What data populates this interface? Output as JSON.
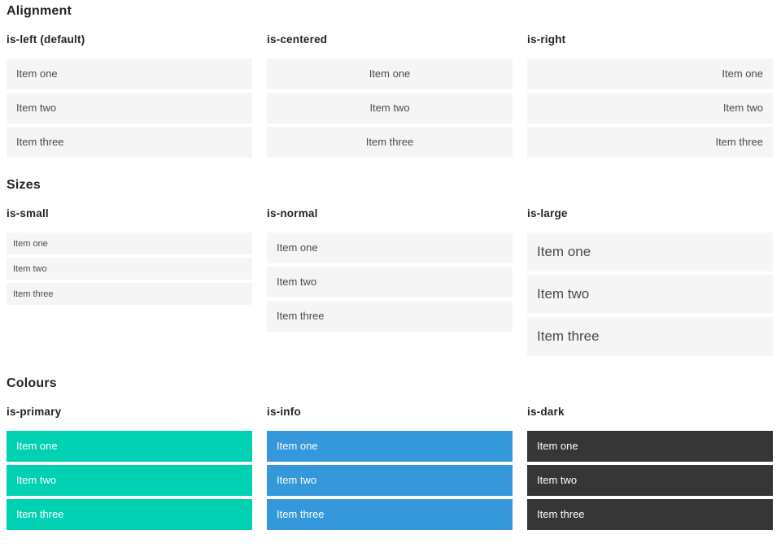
{
  "page": {
    "background": "#ffffff"
  },
  "colors": {
    "primary": "#00d1b2",
    "info": "#3498db",
    "dark": "#363636",
    "item_background": "#f5f5f5",
    "item_text": "#4a4a4a",
    "colored_item_text": "#ffffff",
    "heading_text": "#242424"
  },
  "sections": [
    {
      "title": "Alignment",
      "columns": [
        {
          "heading": "is-left (default)",
          "modifier": "left",
          "items": [
            "Item one",
            "Item two",
            "Item three"
          ]
        },
        {
          "heading": "is-centered",
          "modifier": "centered",
          "items": [
            "Item one",
            "Item two",
            "Item three"
          ]
        },
        {
          "heading": "is-right",
          "modifier": "right",
          "items": [
            "Item one",
            "Item two",
            "Item three"
          ]
        }
      ]
    },
    {
      "title": "Sizes",
      "columns": [
        {
          "heading": "is-small",
          "modifier": "small",
          "items": [
            "Item one",
            "Item two",
            "Item three"
          ]
        },
        {
          "heading": "is-normal",
          "modifier": "normal",
          "items": [
            "Item one",
            "Item two",
            "Item three"
          ]
        },
        {
          "heading": "is-large",
          "modifier": "large",
          "items": [
            "Item one",
            "Item two",
            "Item three"
          ]
        }
      ]
    },
    {
      "title": "Colours",
      "columns": [
        {
          "heading": "is-primary",
          "modifier": "primary",
          "items": [
            "Item one",
            "Item two",
            "Item three"
          ]
        },
        {
          "heading": "is-info",
          "modifier": "info",
          "items": [
            "Item one",
            "Item two",
            "Item three"
          ]
        },
        {
          "heading": "is-dark",
          "modifier": "dark",
          "items": [
            "Item one",
            "Item two",
            "Item three"
          ]
        }
      ]
    }
  ]
}
